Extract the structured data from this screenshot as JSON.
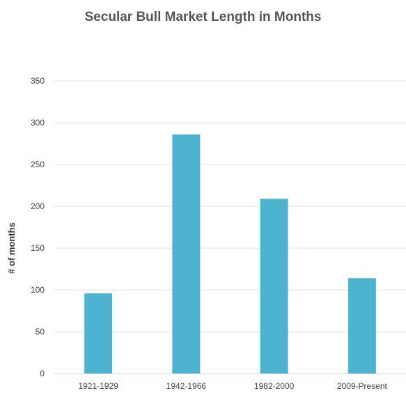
{
  "chart_data": {
    "type": "bar",
    "title": "Secular Bull Market Length in Months",
    "xlabel": "",
    "ylabel": "# of months",
    "categories": [
      "1921-1929",
      "1942-1966",
      "1982-2000",
      "2009-Present"
    ],
    "values": [
      96,
      286,
      209,
      114
    ],
    "ylim": [
      0,
      350
    ],
    "yticks": [
      0,
      50,
      100,
      150,
      200,
      250,
      300,
      350
    ],
    "grid": true,
    "legend": "none",
    "bar_color": "#4db3cf",
    "grid_color": "#e3e3e3"
  }
}
